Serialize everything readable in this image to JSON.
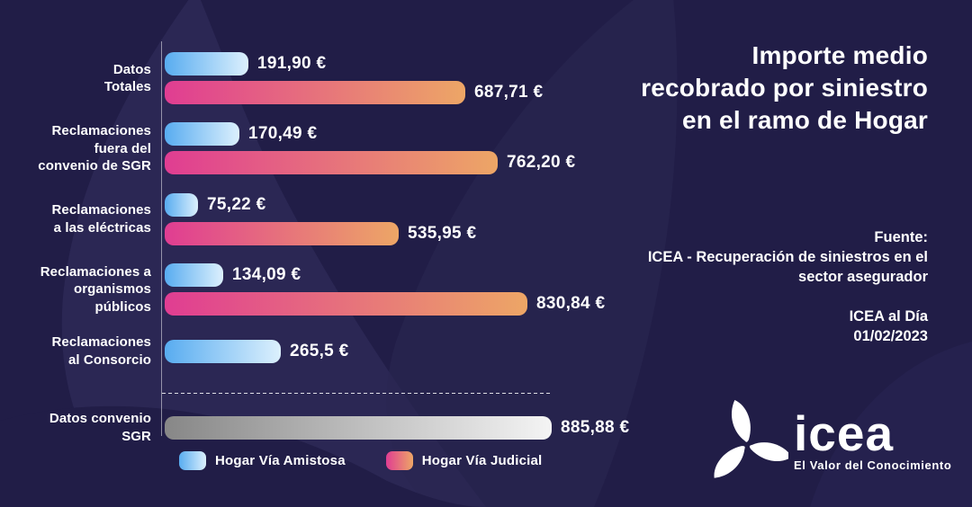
{
  "title_panel": {
    "title": "Importe medio recobrado por siniestro en el ramo de Hogar",
    "source_label": "Fuente:",
    "source_text": "ICEA - Recuperación de siniestros en el sector asegurador",
    "publication": "ICEA al Día",
    "date": "01/02/2023"
  },
  "logo": {
    "brand": "icea",
    "tagline": "El Valor del Conocimiento"
  },
  "legend": [
    {
      "id": "amistosa",
      "label": "Hogar Vía Amistosa"
    },
    {
      "id": "judicial",
      "label": "Hogar Vía Judicial"
    }
  ],
  "chart_data": {
    "type": "bar",
    "orientation": "horizontal",
    "title": "Importe medio recobrado por siniestro en el ramo de Hogar",
    "xlabel": "",
    "ylabel": "",
    "xlim": [
      0,
      900
    ],
    "grid": false,
    "legend_position": "bottom",
    "categories": [
      "Datos Totales",
      "Reclamaciones fuera del convenio de SGR",
      "Reclamaciones a las eléctricas",
      "Reclamaciones a organismos públicos",
      "Reclamaciones al Consorcio",
      "Datos convenio SGR"
    ],
    "series": [
      {
        "name": "Hogar Vía Amistosa",
        "values": [
          191.9,
          170.49,
          75.22,
          134.09,
          265.5,
          null
        ]
      },
      {
        "name": "Hogar Vía Judicial",
        "values": [
          687.71,
          762.2,
          535.95,
          830.84,
          null,
          null
        ]
      },
      {
        "name": "Convenio SGR",
        "values": [
          null,
          null,
          null,
          null,
          null,
          885.88
        ]
      }
    ],
    "rows": [
      {
        "label": "Datos\nTotales",
        "bars": [
          {
            "series": "amistosa",
            "value": 191.9,
            "label": "191,90 €"
          },
          {
            "series": "judicial",
            "value": 687.71,
            "label": "687,71 €"
          }
        ]
      },
      {
        "label": "Reclamaciones\nfuera del\nconvenio de SGR",
        "bars": [
          {
            "series": "amistosa",
            "value": 170.49,
            "label": "170,49 €"
          },
          {
            "series": "judicial",
            "value": 762.2,
            "label": "762,20 €"
          }
        ]
      },
      {
        "label": "Reclamaciones\na las eléctricas",
        "bars": [
          {
            "series": "amistosa",
            "value": 75.22,
            "label": "75,22 €"
          },
          {
            "series": "judicial",
            "value": 535.95,
            "label": "535,95 €"
          }
        ]
      },
      {
        "label": "Reclamaciones a\norganismos\npúblicos",
        "bars": [
          {
            "series": "amistosa",
            "value": 134.09,
            "label": "134,09 €"
          },
          {
            "series": "judicial",
            "value": 830.84,
            "label": "830,84 €"
          }
        ]
      },
      {
        "label": "Reclamaciones\nal Consorcio",
        "bars": [
          {
            "series": "amistosa",
            "value": 265.5,
            "label": "265,5 €"
          }
        ]
      },
      {
        "label": "Datos convenio\nSGR",
        "separator_before": true,
        "bars": [
          {
            "series": "sgr",
            "value": 885.88,
            "label": "885,88 €"
          }
        ]
      }
    ],
    "colors": {
      "amistosa": [
        "#58acf0",
        "#dcf0fd"
      ],
      "judicial": [
        "#e03d92",
        "#eda666"
      ],
      "sgr": [
        "#878787",
        "#f4f4f4"
      ],
      "background": "#211d47",
      "text": "#ffffff"
    }
  }
}
